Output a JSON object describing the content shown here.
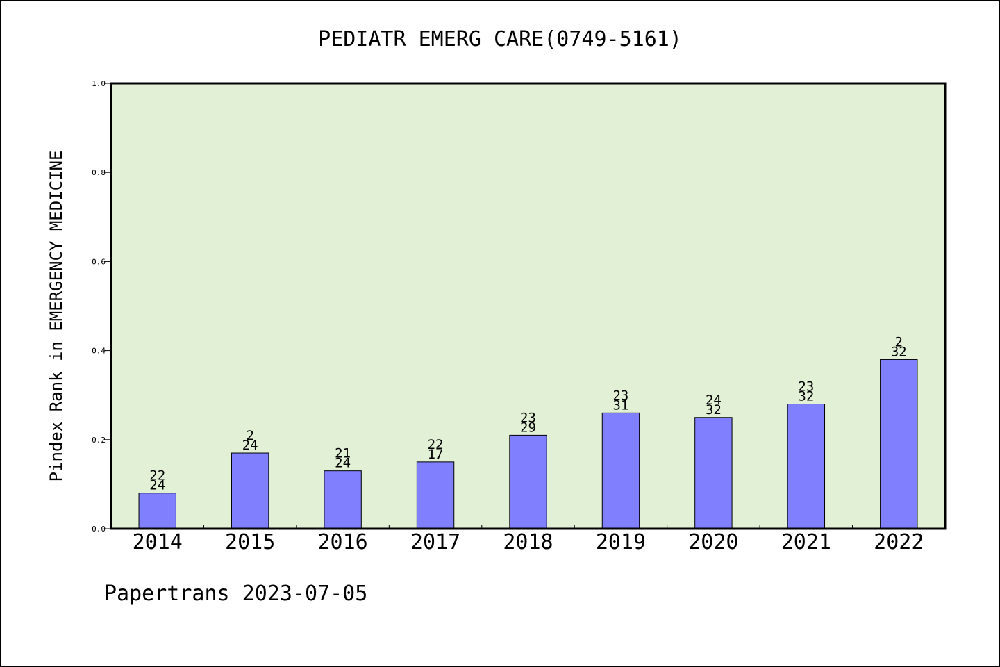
{
  "chart_data": {
    "type": "bar",
    "title": "PEDIATR EMERG CARE(0749-5161)",
    "ylabel": "Pindex Rank in EMERGENCY MEDICINE",
    "xlabel": "",
    "categories": [
      "2014",
      "2015",
      "2016",
      "2017",
      "2018",
      "2019",
      "2020",
      "2021",
      "2022"
    ],
    "values": [
      0.08,
      0.17,
      0.13,
      0.15,
      0.21,
      0.26,
      0.25,
      0.28,
      0.38
    ],
    "bar_labels_top": [
      "22",
      "2",
      "21",
      "22",
      "23",
      "23",
      "24",
      "23",
      "2"
    ],
    "bar_labels_bottom": [
      "24",
      "24",
      "24",
      "17",
      "29",
      "31",
      "32",
      "32",
      "32"
    ],
    "ylim": [
      0,
      1.0
    ],
    "yticks": [
      "0.0",
      "0.2",
      "0.4",
      "0.6",
      "0.8",
      "1.0"
    ],
    "grid": false,
    "colors": {
      "plot_background": "#e2f0d6",
      "bar_fill": "#8080ff",
      "bar_stroke": "#000000"
    }
  },
  "footer": "Papertrans 2023-07-05"
}
